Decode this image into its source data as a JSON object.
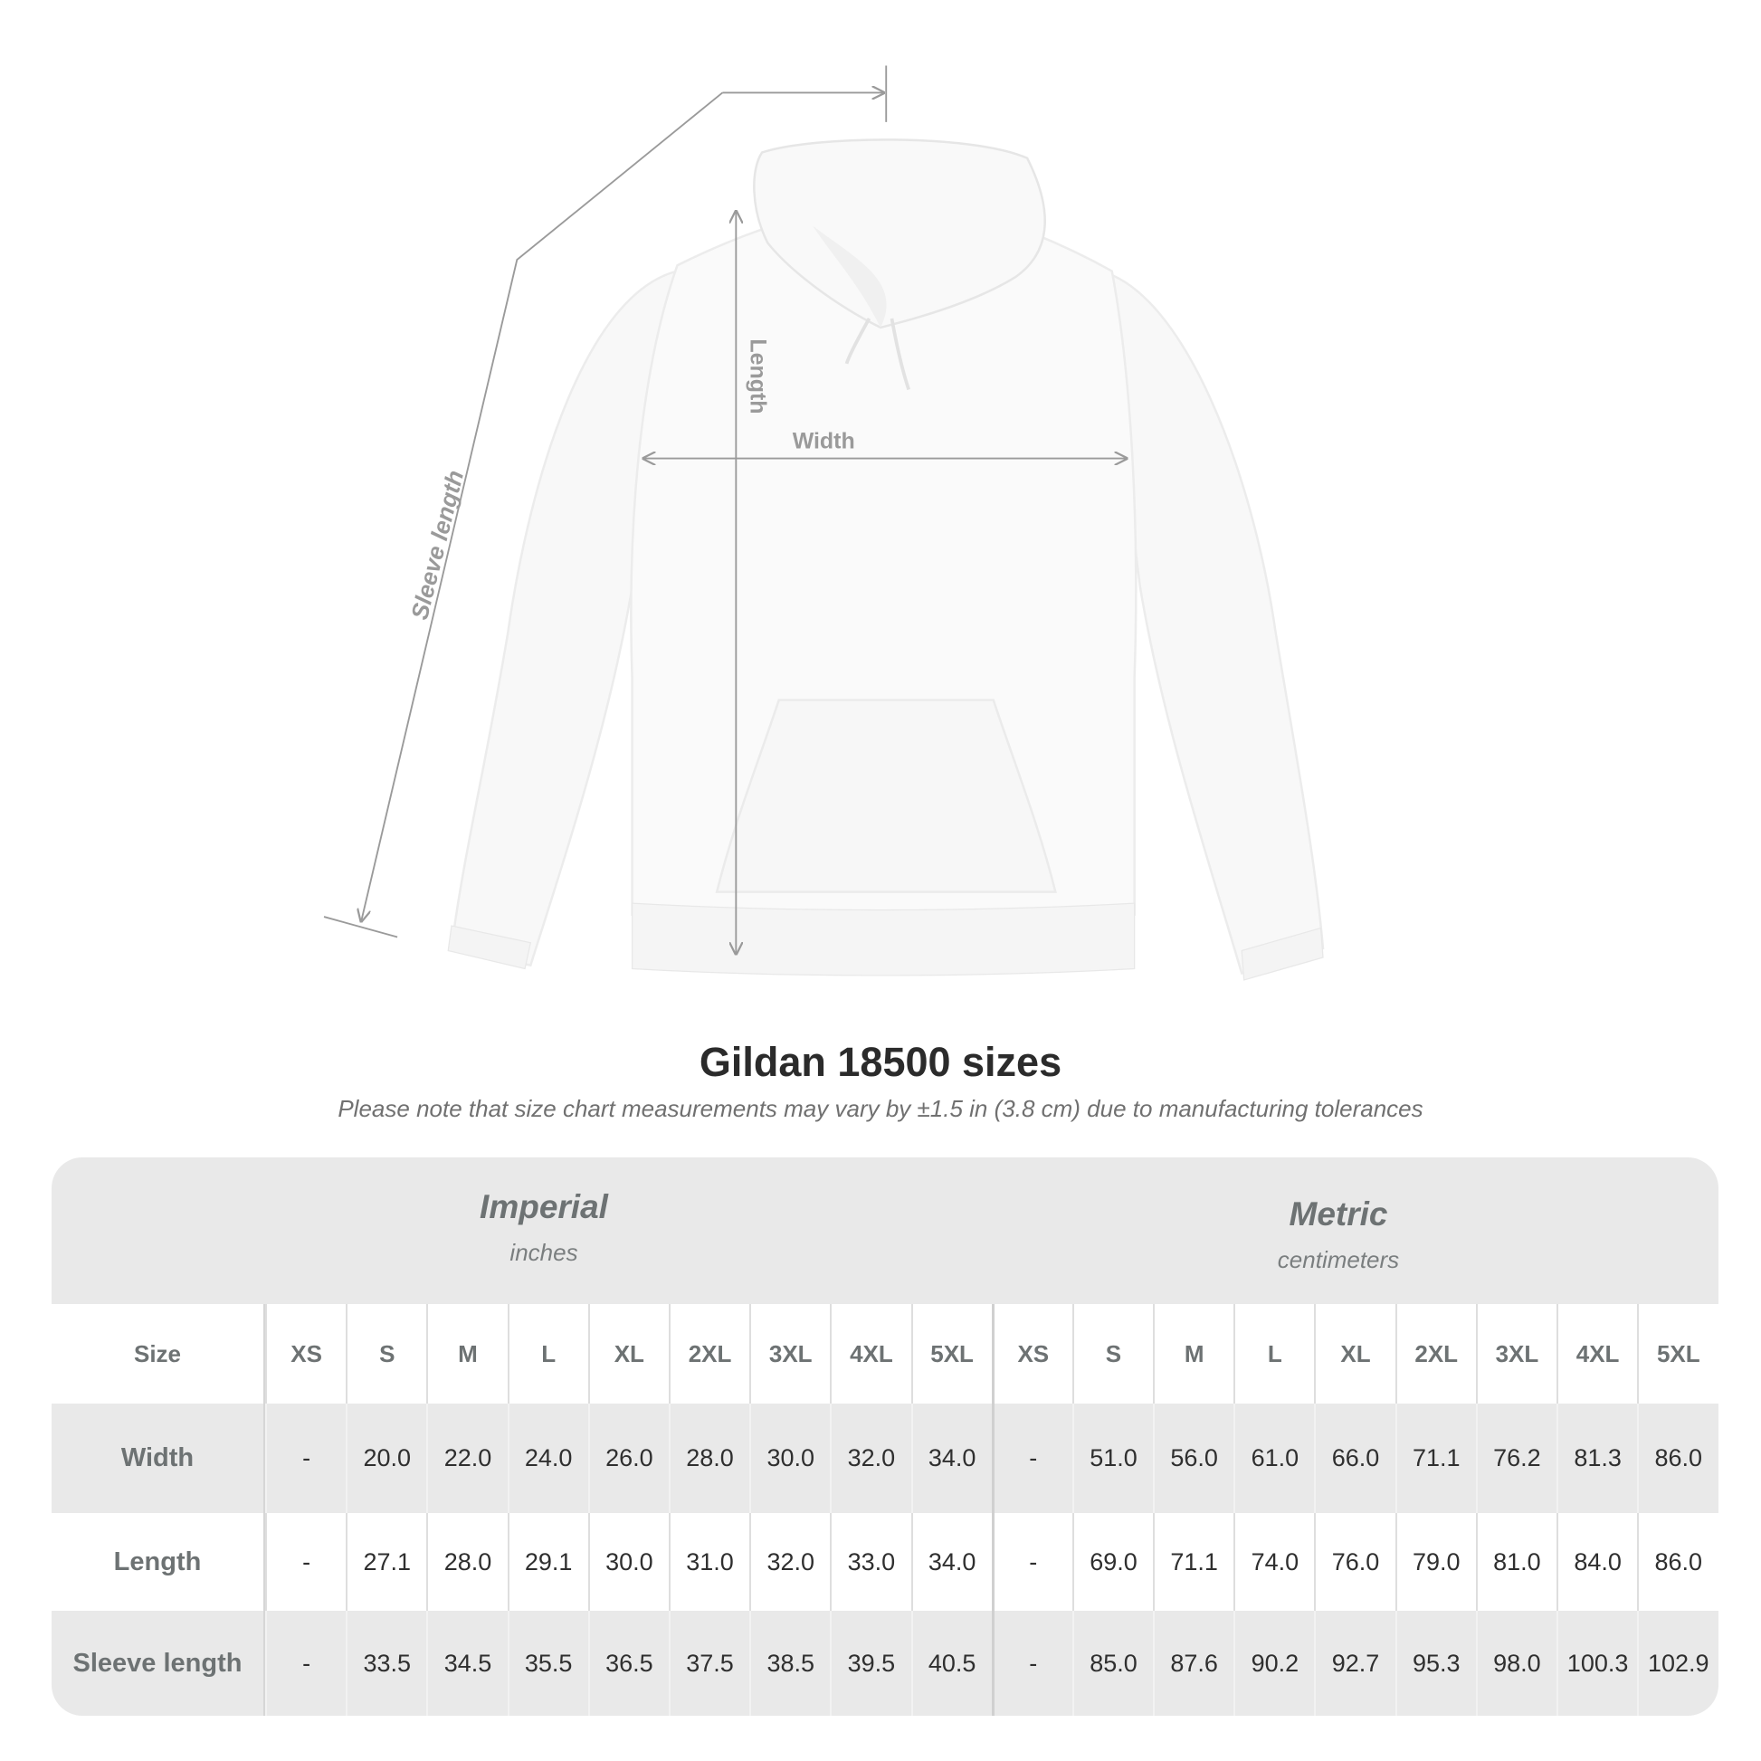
{
  "diagram": {
    "labels": {
      "sleeve": "Sleeve length",
      "length": "Length",
      "width": "Width"
    },
    "line_color": "#9a9a9a"
  },
  "title": "Gildan 18500 sizes",
  "subtitle": "Please note that size chart measurements may vary by ±1.5 in (3.8 cm) due to manufacturing tolerances",
  "table": {
    "imperial": {
      "name": "Imperial",
      "unit": "inches"
    },
    "metric": {
      "name": "Metric",
      "unit": "centimeters"
    },
    "size_label": "Size",
    "sizes": [
      "XS",
      "S",
      "M",
      "L",
      "XL",
      "2XL",
      "3XL",
      "4XL",
      "5XL"
    ],
    "rows": [
      {
        "label": "Width",
        "imperial": [
          "-",
          "20.0",
          "22.0",
          "24.0",
          "26.0",
          "28.0",
          "30.0",
          "32.0",
          "34.0"
        ],
        "metric": [
          "-",
          "51.0",
          "56.0",
          "61.0",
          "66.0",
          "71.1",
          "76.2",
          "81.3",
          "86.0"
        ]
      },
      {
        "label": "Length",
        "imperial": [
          "-",
          "27.1",
          "28.0",
          "29.1",
          "30.0",
          "31.0",
          "32.0",
          "33.0",
          "34.0"
        ],
        "metric": [
          "-",
          "69.0",
          "71.1",
          "74.0",
          "76.0",
          "79.0",
          "81.0",
          "84.0",
          "86.0"
        ]
      },
      {
        "label": "Sleeve length",
        "imperial": [
          "-",
          "33.5",
          "34.5",
          "35.5",
          "36.5",
          "37.5",
          "38.5",
          "39.5",
          "40.5"
        ],
        "metric": [
          "-",
          "85.0",
          "87.6",
          "90.2",
          "92.7",
          "95.3",
          "98.0",
          "100.3",
          "102.9"
        ]
      }
    ],
    "colors": {
      "band": "#e9e9e9",
      "label": "#6d7273",
      "value": "#2f2f2f"
    }
  }
}
